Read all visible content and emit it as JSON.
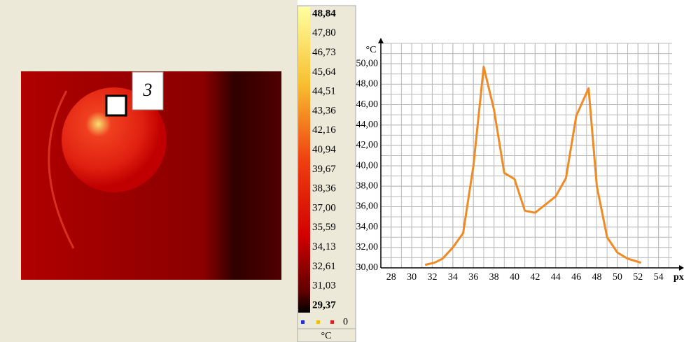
{
  "image": {
    "marker_label": "3"
  },
  "colorbar": {
    "labels": [
      "48,84",
      "47,80",
      "46,73",
      "45,64",
      "44,51",
      "43,36",
      "42,16",
      "40,94",
      "39,67",
      "38,36",
      "37,00",
      "35,59",
      "34,13",
      "32,61",
      "31,03",
      "29,37"
    ],
    "zero": "0",
    "unit": "°C"
  },
  "chart_data": {
    "type": "line",
    "ylabel": "°C",
    "xlabel": "px",
    "x": [
      31.3,
      32.2,
      33,
      34,
      35,
      36,
      37,
      38,
      39,
      40,
      41,
      42,
      43,
      44,
      45,
      46,
      47.2,
      48,
      49,
      50,
      51,
      52.3
    ],
    "values": [
      30.3,
      30.5,
      30.9,
      32,
      33.4,
      40,
      49.7,
      45.5,
      39.3,
      38.7,
      35.6,
      35.4,
      36.2,
      37,
      38.8,
      44.9,
      47.6,
      38,
      33,
      31.5,
      30.9,
      30.5
    ],
    "color": "#f08a24",
    "xlim": [
      27,
      56
    ],
    "ylim": [
      30,
      52
    ],
    "xticks": [
      28,
      30,
      32,
      34,
      36,
      38,
      40,
      42,
      44,
      46,
      48,
      50,
      52,
      54
    ],
    "yticks": [
      {
        "value": 30,
        "label": "30,00"
      },
      {
        "value": 32,
        "label": "32,00"
      },
      {
        "value": 34,
        "label": "34,00"
      },
      {
        "value": 36,
        "label": "36,00"
      },
      {
        "value": 38,
        "label": "38,00"
      },
      {
        "value": 40,
        "label": "40,00"
      },
      {
        "value": 42,
        "label": "42,00"
      },
      {
        "value": 44,
        "label": "44,00"
      },
      {
        "value": 46,
        "label": "46,00"
      },
      {
        "value": 48,
        "label": "48,00"
      },
      {
        "value": 50,
        "label": "50,00"
      }
    ],
    "grid": true
  }
}
